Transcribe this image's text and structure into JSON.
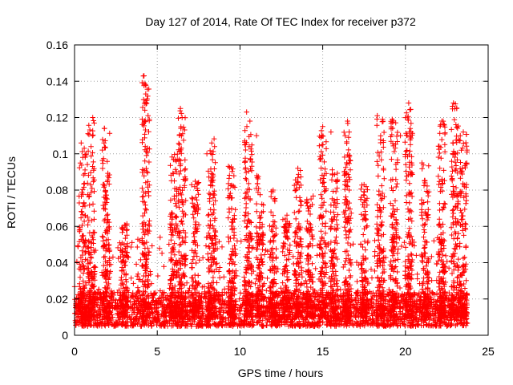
{
  "chart_data": {
    "type": "scatter",
    "title": "Day 127 of 2014, Rate Of TEC Index for receiver p372",
    "xlabel": "GPS time / hours",
    "ylabel": "ROTI / TECUs",
    "xlim": [
      0,
      25
    ],
    "ylim": [
      0,
      0.16
    ],
    "x_ticks": [
      0,
      5,
      10,
      15,
      20,
      25
    ],
    "y_ticks": [
      0,
      0.02,
      0.04,
      0.06,
      0.08,
      0.1,
      0.12,
      0.14,
      0.16
    ],
    "x_tick_labels": [
      "0",
      "5",
      "10",
      "15",
      "20",
      "25"
    ],
    "y_tick_labels": [
      "0",
      "0.02",
      "0.04",
      "0.06",
      "0.08",
      "0.1",
      "0.12",
      "0.14",
      "0.16"
    ],
    "grid": true,
    "marker": "+",
    "marker_color": "#ff0000",
    "x_range_of_data": [
      0,
      23.75
    ],
    "baseline_band": [
      0.005,
      0.02
    ],
    "series": [
      {
        "name": "ROTI",
        "notable_points": [
          {
            "x": 4.2,
            "y": 0.143
          },
          {
            "x": 4.3,
            "y": 0.133
          },
          {
            "x": 4.25,
            "y": 0.124
          },
          {
            "x": 6.4,
            "y": 0.125
          },
          {
            "x": 6.5,
            "y": 0.12
          },
          {
            "x": 1.1,
            "y": 0.12
          },
          {
            "x": 1.8,
            "y": 0.114
          },
          {
            "x": 10.4,
            "y": 0.123
          },
          {
            "x": 10.6,
            "y": 0.118
          },
          {
            "x": 11.0,
            "y": 0.11
          },
          {
            "x": 15.0,
            "y": 0.115
          },
          {
            "x": 15.5,
            "y": 0.112
          },
          {
            "x": 16.5,
            "y": 0.118
          },
          {
            "x": 16.6,
            "y": 0.112
          },
          {
            "x": 18.3,
            "y": 0.121
          },
          {
            "x": 19.2,
            "y": 0.119
          },
          {
            "x": 19.7,
            "y": 0.11
          },
          {
            "x": 20.2,
            "y": 0.128
          },
          {
            "x": 22.2,
            "y": 0.118
          },
          {
            "x": 22.9,
            "y": 0.128
          },
          {
            "x": 23.1,
            "y": 0.125
          },
          {
            "x": 23.5,
            "y": 0.112
          },
          {
            "x": 0.4,
            "y": 0.106
          },
          {
            "x": 0.5,
            "y": 0.098
          },
          {
            "x": 1.0,
            "y": 0.104
          },
          {
            "x": 13.5,
            "y": 0.092
          },
          {
            "x": 21.0,
            "y": 0.095
          },
          {
            "x": 8.0,
            "y": 0.1
          },
          {
            "x": 4.25,
            "y": 0.096
          },
          {
            "x": 17.5,
            "y": 0.083
          },
          {
            "x": 12.0,
            "y": 0.08
          }
        ],
        "activity_bursts": [
          {
            "x": 0.5,
            "peak": 0.105
          },
          {
            "x": 1.0,
            "peak": 0.12
          },
          {
            "x": 1.9,
            "peak": 0.114
          },
          {
            "x": 3.0,
            "peak": 0.062
          },
          {
            "x": 4.3,
            "peak": 0.143
          },
          {
            "x": 6.0,
            "peak": 0.1
          },
          {
            "x": 6.5,
            "peak": 0.125
          },
          {
            "x": 7.3,
            "peak": 0.085
          },
          {
            "x": 8.3,
            "peak": 0.11
          },
          {
            "x": 9.5,
            "peak": 0.095
          },
          {
            "x": 10.5,
            "peak": 0.123
          },
          {
            "x": 11.2,
            "peak": 0.09
          },
          {
            "x": 12.0,
            "peak": 0.08
          },
          {
            "x": 12.8,
            "peak": 0.068
          },
          {
            "x": 13.5,
            "peak": 0.092
          },
          {
            "x": 14.2,
            "peak": 0.078
          },
          {
            "x": 15.0,
            "peak": 0.115
          },
          {
            "x": 15.7,
            "peak": 0.095
          },
          {
            "x": 16.5,
            "peak": 0.118
          },
          {
            "x": 17.5,
            "peak": 0.083
          },
          {
            "x": 18.5,
            "peak": 0.121
          },
          {
            "x": 19.3,
            "peak": 0.119
          },
          {
            "x": 20.2,
            "peak": 0.128
          },
          {
            "x": 21.2,
            "peak": 0.095
          },
          {
            "x": 22.2,
            "peak": 0.118
          },
          {
            "x": 23.0,
            "peak": 0.128
          },
          {
            "x": 23.5,
            "peak": 0.112
          }
        ]
      }
    ]
  }
}
